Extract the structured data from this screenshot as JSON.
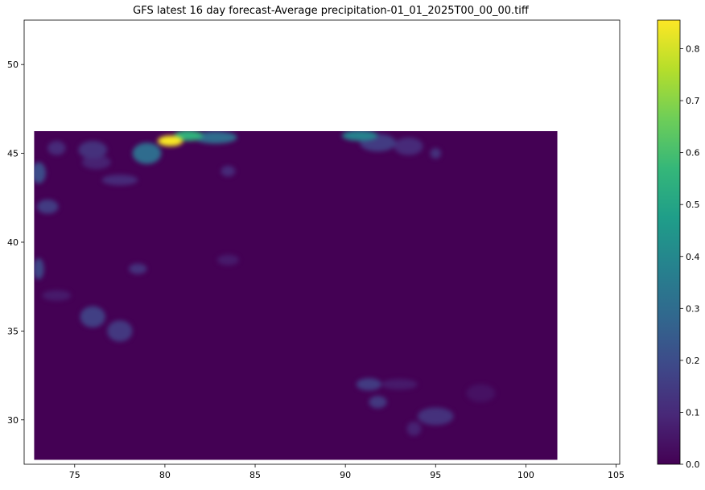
{
  "chart_data": {
    "type": "heatmap",
    "title": "GFS latest 16 day forecast-Average precipitation-01_01_2025T00_00_00.tiff",
    "xlabel": "",
    "ylabel": "",
    "xlim": [
      72.2,
      105.2
    ],
    "ylim": [
      27.5,
      52.5
    ],
    "data_extent": {
      "x": [
        72.75,
        101.75
      ],
      "y": [
        27.75,
        46.25
      ]
    },
    "xticks": [
      75,
      80,
      85,
      90,
      95,
      100,
      105
    ],
    "yticks": [
      30,
      35,
      40,
      45,
      50
    ],
    "colorbar": {
      "min": 0.0,
      "max": 0.855,
      "ticks": [
        "0.0",
        "0.1",
        "0.2",
        "0.3",
        "0.4",
        "0.5",
        "0.6",
        "0.7",
        "0.8"
      ],
      "colormap": "viridis"
    },
    "colors": {
      "viridis": [
        "#440154",
        "#482878",
        "#3e4989",
        "#31688e",
        "#26828e",
        "#1f9e89",
        "#35b779",
        "#6ece58",
        "#b5de2b",
        "#fde725"
      ]
    },
    "hotspots": [
      {
        "x": 80.3,
        "y": 45.7,
        "value": 0.85,
        "sx": 0.7,
        "sy": 0.3
      },
      {
        "x": 81.3,
        "y": 46.0,
        "value": 0.55,
        "sx": 0.8,
        "sy": 0.3
      },
      {
        "x": 79.0,
        "y": 45.0,
        "value": 0.3,
        "sx": 0.8,
        "sy": 0.6
      },
      {
        "x": 82.8,
        "y": 45.9,
        "value": 0.3,
        "sx": 1.2,
        "sy": 0.35
      },
      {
        "x": 90.8,
        "y": 46.0,
        "value": 0.38,
        "sx": 1.0,
        "sy": 0.3
      },
      {
        "x": 91.8,
        "y": 45.6,
        "value": 0.15,
        "sx": 1.0,
        "sy": 0.5
      },
      {
        "x": 93.5,
        "y": 45.4,
        "value": 0.1,
        "sx": 0.8,
        "sy": 0.5
      },
      {
        "x": 95.0,
        "y": 45.0,
        "value": 0.12,
        "sx": 0.3,
        "sy": 0.3
      },
      {
        "x": 76.0,
        "y": 45.2,
        "value": 0.12,
        "sx": 0.8,
        "sy": 0.5
      },
      {
        "x": 74.0,
        "y": 45.3,
        "value": 0.1,
        "sx": 0.5,
        "sy": 0.4
      },
      {
        "x": 73.0,
        "y": 43.9,
        "value": 0.2,
        "sx": 0.4,
        "sy": 0.6
      },
      {
        "x": 73.5,
        "y": 42.0,
        "value": 0.15,
        "sx": 0.6,
        "sy": 0.4
      },
      {
        "x": 76.2,
        "y": 44.5,
        "value": 0.08,
        "sx": 0.8,
        "sy": 0.4
      },
      {
        "x": 77.5,
        "y": 43.5,
        "value": 0.1,
        "sx": 1.0,
        "sy": 0.3
      },
      {
        "x": 83.5,
        "y": 44.0,
        "value": 0.1,
        "sx": 0.4,
        "sy": 0.3
      },
      {
        "x": 73.0,
        "y": 38.5,
        "value": 0.18,
        "sx": 0.3,
        "sy": 0.6
      },
      {
        "x": 78.5,
        "y": 38.5,
        "value": 0.12,
        "sx": 0.5,
        "sy": 0.3
      },
      {
        "x": 83.5,
        "y": 39.0,
        "value": 0.06,
        "sx": 0.6,
        "sy": 0.3
      },
      {
        "x": 74.0,
        "y": 37.0,
        "value": 0.06,
        "sx": 0.8,
        "sy": 0.3
      },
      {
        "x": 76.0,
        "y": 35.8,
        "value": 0.16,
        "sx": 0.7,
        "sy": 0.6
      },
      {
        "x": 77.5,
        "y": 35.0,
        "value": 0.14,
        "sx": 0.7,
        "sy": 0.6
      },
      {
        "x": 91.3,
        "y": 32.0,
        "value": 0.15,
        "sx": 0.7,
        "sy": 0.35
      },
      {
        "x": 93.0,
        "y": 32.0,
        "value": 0.06,
        "sx": 1.0,
        "sy": 0.3
      },
      {
        "x": 91.8,
        "y": 31.0,
        "value": 0.14,
        "sx": 0.5,
        "sy": 0.35
      },
      {
        "x": 95.0,
        "y": 30.2,
        "value": 0.12,
        "sx": 1.0,
        "sy": 0.5
      },
      {
        "x": 93.8,
        "y": 29.5,
        "value": 0.08,
        "sx": 0.4,
        "sy": 0.4
      },
      {
        "x": 97.5,
        "y": 31.5,
        "value": 0.04,
        "sx": 0.8,
        "sy": 0.5
      }
    ]
  }
}
